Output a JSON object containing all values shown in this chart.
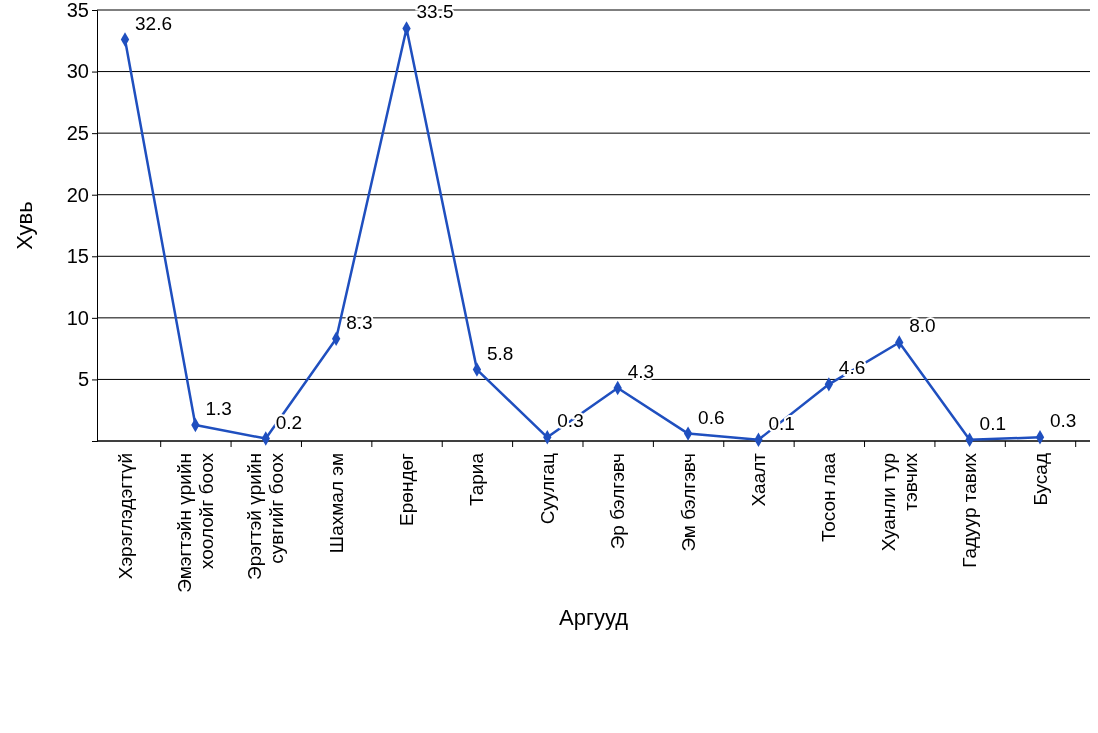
{
  "chart_data": {
    "type": "line",
    "xlabel": "Аргууд",
    "ylabel": "Хувь",
    "categories": [
      "Хэрэглэдэгтүй",
      "Эмэгтэйн үрийн\nхоолойг боох",
      "Эрэгтэй үрийн\nсувгийг боох",
      "Шахмал эм",
      "Ерөндөг",
      "Тариа",
      "Суулгац",
      "Эр бэлгэвч",
      "Эм бэлгэвч",
      "Хаалт",
      "Тосон лаа",
      "Хуанли тур\nтэвчих",
      "Гадуур тавих",
      "Бусад"
    ],
    "series": [
      {
        "color": "#1f4fbf",
        "values": [
          32.6,
          1.3,
          0.2,
          8.3,
          33.5,
          5.8,
          0.3,
          4.3,
          0.6,
          0.1,
          4.6,
          8.0,
          0.1,
          0.3
        ]
      }
    ],
    "ylim": [
      0,
      35
    ],
    "yticks": [
      {
        "value": 0,
        "label": null
      },
      5,
      10,
      15,
      20,
      25,
      30,
      35
    ],
    "grid": "y",
    "marker": "diamond",
    "line_style": "solid",
    "value_labels": [
      "32.6",
      "1.3",
      "0.2",
      "8.3",
      "33.5",
      "5.8",
      "0.3",
      "4.3",
      "0.6",
      "0.1",
      "4.6",
      "8.0",
      "0.1",
      "0.3"
    ]
  }
}
